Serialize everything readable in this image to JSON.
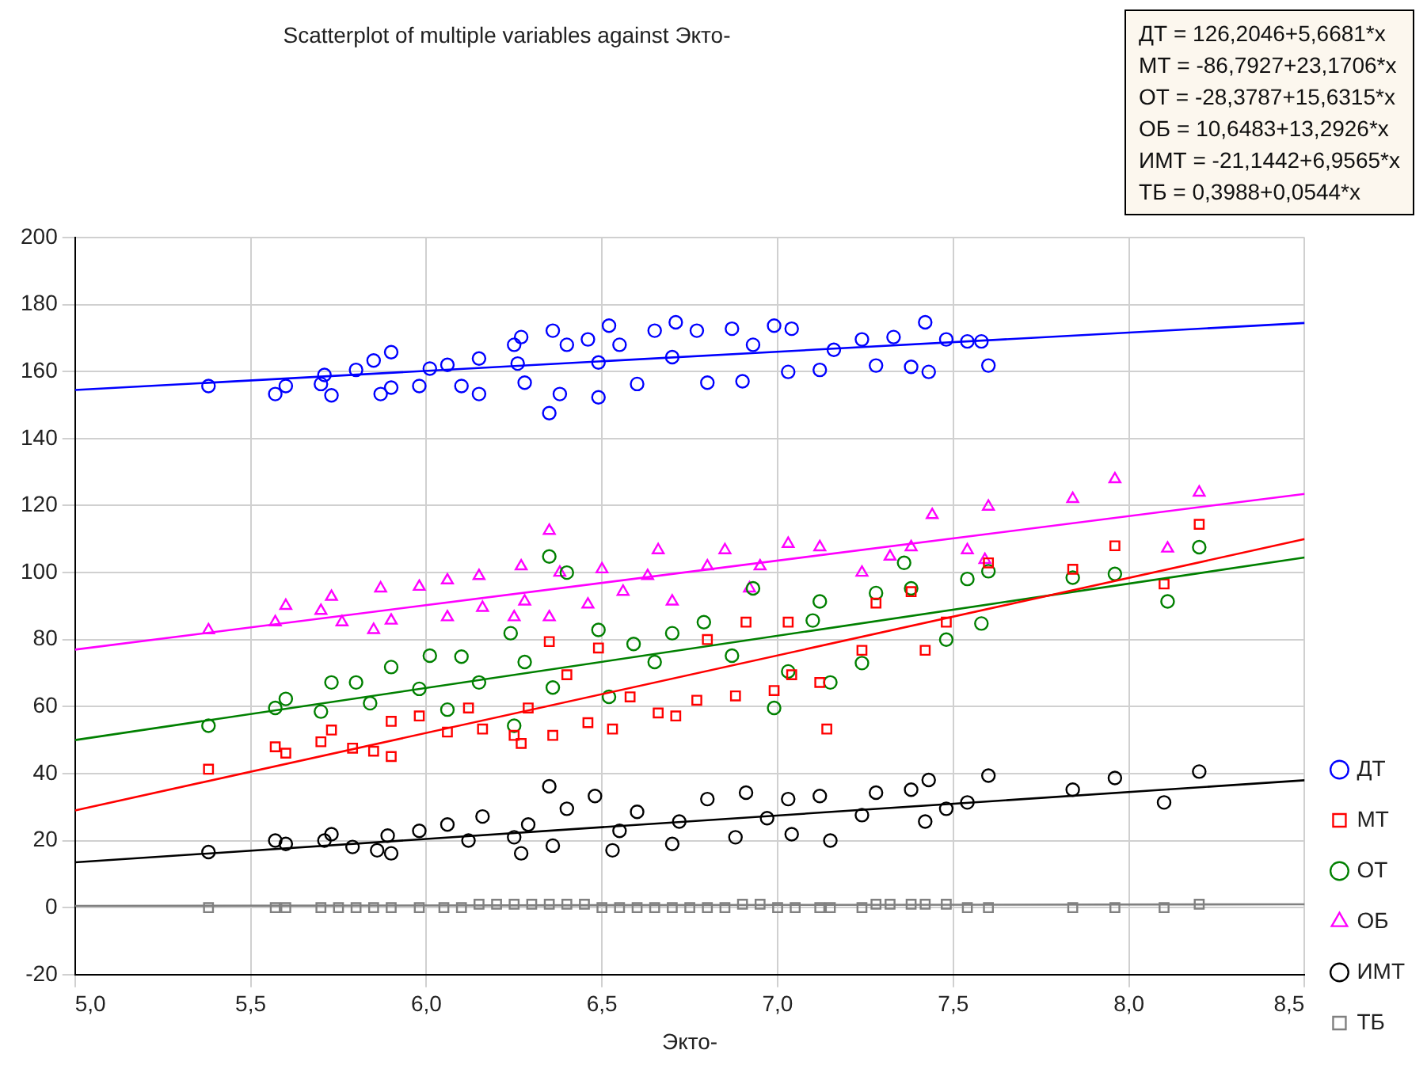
{
  "chart_data": {
    "type": "scatter",
    "title": "Scatterplot of multiple variables against Экто-",
    "xlabel": "Экто-",
    "xlim": [
      5,
      8.5
    ],
    "xticks": [
      {
        "value": 5,
        "label": "5,0"
      },
      {
        "value": 5.5,
        "label": "5,5"
      },
      {
        "value": 6,
        "label": "6,0"
      },
      {
        "value": 6.5,
        "label": "6,5"
      },
      {
        "value": 7,
        "label": "7,0"
      },
      {
        "value": 7.5,
        "label": "7,5"
      },
      {
        "value": 8,
        "label": "8,0"
      },
      {
        "value": 8.5,
        "label": "8,5"
      }
    ],
    "ylim": [
      -20,
      200
    ],
    "yticks": [
      -20,
      0,
      20,
      40,
      60,
      80,
      100,
      120,
      140,
      160,
      180,
      200
    ],
    "grid": true,
    "legend": "bottom right",
    "annotations": [
      "ДТ = 126,2046+5,6681*x",
      "МТ = -86,7927+23,1706*x",
      "ОТ = -28,3787+15,6315*x",
      "ОБ = 10,6483+13,2926*x",
      "ИМТ = -21,1442+6,9565*x",
      "ТБ = 0,3988+0,0544*x"
    ],
    "series": [
      {
        "name": "ДТ",
        "color": "#0000ff",
        "marker": "circle",
        "x": [
          5.38,
          5.57,
          5.6,
          5.71,
          5.73,
          5.7,
          5.8,
          5.85,
          5.87,
          5.9,
          5.9,
          5.98,
          6.01,
          6.06,
          6.1,
          6.15,
          6.15,
          6.25,
          6.27,
          6.26,
          6.28,
          6.35,
          6.36,
          6.38,
          6.4,
          6.46,
          6.49,
          6.49,
          6.52,
          6.55,
          6.6,
          6.65,
          6.71,
          6.7,
          6.77,
          6.8,
          6.87,
          6.9,
          6.93,
          6.99,
          7.03,
          7.04,
          7.12,
          7.16,
          7.24,
          7.28,
          7.33,
          7.38,
          7.42,
          7.43,
          7.48,
          7.54,
          7.58,
          7.6
        ],
        "values": [
          155.7,
          153.3,
          155.7,
          159,
          152.9,
          156.3,
          160.5,
          163.3,
          153.3,
          165.8,
          155.2,
          155.7,
          160.9,
          162,
          155.7,
          153.3,
          163.9,
          168,
          170.3,
          162.4,
          156.7,
          147.6,
          172.2,
          153.3,
          168,
          169.6,
          162.7,
          152.3,
          173.7,
          168,
          156.3,
          172.2,
          174.7,
          164.3,
          172.2,
          156.7,
          172.8,
          157.1,
          168,
          173.7,
          159.9,
          172.8,
          160.5,
          166.5,
          169.6,
          161.8,
          170.3,
          161.4,
          174.7,
          159.9,
          169.6,
          169,
          169,
          161.8
        ]
      },
      {
        "name": "МТ",
        "color": "#ff0000",
        "marker": "square",
        "x": [
          5.38,
          5.57,
          5.6,
          5.7,
          5.73,
          5.79,
          5.85,
          5.9,
          5.9,
          5.98,
          6.06,
          6.12,
          6.16,
          6.25,
          6.27,
          6.29,
          6.35,
          6.36,
          6.4,
          6.46,
          6.49,
          6.53,
          6.58,
          6.66,
          6.71,
          6.77,
          6.8,
          6.88,
          6.91,
          6.99,
          7.03,
          7.04,
          7.12,
          7.14,
          7.24,
          7.28,
          7.38,
          7.42,
          7.48,
          7.6,
          7.84,
          7.96,
          8.1,
          8.2
        ],
        "values": [
          41.3,
          48,
          46.1,
          49.5,
          53,
          47.6,
          46.7,
          55.6,
          45.1,
          57.2,
          52.4,
          59.6,
          53.3,
          51.4,
          49,
          59.6,
          79.4,
          51.4,
          69.5,
          55.2,
          77.5,
          53.3,
          62.9,
          58.1,
          57.2,
          61.9,
          80,
          63.2,
          85.2,
          64.8,
          85.2,
          69.5,
          67.2,
          53.3,
          76.8,
          90.9,
          94.3,
          76.8,
          85.2,
          102.9,
          101,
          108,
          96.6,
          114.4
        ]
      },
      {
        "name": "ОТ",
        "color": "#008000",
        "marker": "circle",
        "x": [
          5.38,
          5.57,
          5.6,
          5.7,
          5.73,
          5.8,
          5.84,
          5.9,
          5.98,
          6.01,
          6.06,
          6.1,
          6.15,
          6.24,
          6.25,
          6.28,
          6.35,
          6.36,
          6.4,
          6.49,
          6.52,
          6.59,
          6.65,
          6.7,
          6.79,
          6.87,
          6.93,
          6.99,
          7.03,
          7.1,
          7.12,
          7.15,
          7.24,
          7.28,
          7.36,
          7.38,
          7.48,
          7.54,
          7.6,
          7.58,
          7.84,
          7.96,
          8.11,
          8.2
        ],
        "values": [
          54.3,
          59.6,
          62.3,
          58.5,
          67.2,
          67.2,
          61,
          71.8,
          65.3,
          75.2,
          59.1,
          74.9,
          67.2,
          81.9,
          54.3,
          73.3,
          104.8,
          65.7,
          100,
          82.9,
          62.9,
          78.7,
          73.3,
          81.9,
          85.2,
          75.2,
          95.3,
          59.6,
          70.5,
          85.7,
          91.4,
          67.2,
          73,
          93.9,
          102.9,
          95.3,
          80,
          98.1,
          100.4,
          84.8,
          98.5,
          99.6,
          91.4,
          107.6
        ]
      },
      {
        "name": "ОБ",
        "color": "#ff00ff",
        "marker": "triangle",
        "x": [
          5.38,
          5.57,
          5.6,
          5.7,
          5.73,
          5.76,
          5.85,
          5.87,
          5.9,
          5.98,
          6.06,
          6.06,
          6.15,
          6.16,
          6.27,
          6.25,
          6.28,
          6.35,
          6.38,
          6.46,
          6.5,
          6.56,
          6.63,
          6.7,
          6.66,
          6.8,
          6.85,
          6.92,
          6.95,
          7.03,
          7.12,
          7.24,
          7.32,
          7.38,
          7.54,
          7.59,
          8.11,
          6.35,
          7.44,
          7.6,
          7.84,
          7.96,
          8.2
        ],
        "values": [
          82.8,
          85.2,
          90.1,
          88.6,
          92.8,
          85.2,
          82.9,
          95.3,
          85.7,
          95.8,
          97.7,
          86.7,
          99,
          89.5,
          101.9,
          86.7,
          91.4,
          86.7,
          100,
          90.5,
          101,
          94.3,
          99,
          91.4,
          106.7,
          101.9,
          106.7,
          95.3,
          101.9,
          108.6,
          107.6,
          100,
          104.8,
          107.6,
          106.7,
          103.8,
          107.2,
          112.5,
          117.2,
          119.7,
          122,
          127.9,
          123.9
        ]
      },
      {
        "name": "ИМТ",
        "color": "#000000",
        "marker": "circle",
        "x": [
          5.38,
          5.57,
          5.6,
          5.71,
          5.73,
          5.79,
          5.86,
          5.89,
          5.9,
          5.98,
          6.06,
          6.12,
          6.16,
          6.25,
          6.27,
          6.29,
          6.35,
          6.36,
          6.4,
          6.48,
          6.53,
          6.55,
          6.6,
          6.7,
          6.72,
          6.8,
          6.88,
          6.91,
          6.97,
          7.03,
          7.04,
          7.12,
          7.15,
          7.24,
          7.28,
          7.38,
          7.42,
          7.43,
          7.48,
          7.54,
          7.6,
          7.84,
          7.96,
          8.1,
          8.2
        ],
        "values": [
          16.6,
          20,
          19,
          20,
          21.9,
          18.1,
          17.1,
          21.5,
          16.2,
          22.9,
          24.8,
          20,
          27.2,
          21,
          16.2,
          24.8,
          36.2,
          18.5,
          29.5,
          33.3,
          17.1,
          22.9,
          28.6,
          19,
          25.7,
          32.4,
          21,
          34.3,
          26.7,
          32.4,
          21.9,
          33.3,
          20,
          27.6,
          34.3,
          35.2,
          25.7,
          38.1,
          29.5,
          31.4,
          39.4,
          35.2,
          38.7,
          31.4,
          40.6
        ]
      },
      {
        "name": "ТБ",
        "color": "#808080",
        "marker": "square",
        "x": [
          5.38,
          5.57,
          5.6,
          5.7,
          5.75,
          5.8,
          5.85,
          5.9,
          5.98,
          6.05,
          6.1,
          6.15,
          6.2,
          6.25,
          6.3,
          6.35,
          6.4,
          6.45,
          6.5,
          6.55,
          6.6,
          6.65,
          6.7,
          6.75,
          6.8,
          6.85,
          6.9,
          6.95,
          7,
          7.05,
          7.12,
          7.15,
          7.24,
          7.28,
          7.32,
          7.38,
          7.42,
          7.48,
          7.54,
          7.6,
          7.84,
          7.96,
          8.1,
          8.2
        ],
        "values": [
          0,
          0,
          0,
          0,
          0,
          0,
          0,
          0,
          0,
          0,
          0,
          1,
          1,
          1,
          1,
          1,
          1,
          1,
          0,
          0,
          0,
          0,
          0,
          0,
          0,
          0,
          1,
          1,
          0,
          0,
          0,
          0,
          0,
          1,
          1,
          1,
          1,
          1,
          0,
          0,
          0,
          0,
          0,
          1
        ]
      },
      {
        "type": "line",
        "color": "#0000ff",
        "marker": "none",
        "x": [
          5,
          8.5
        ],
        "values": [
          154.5,
          174.5
        ]
      },
      {
        "type": "line",
        "color": "#ff0000",
        "marker": "none",
        "x": [
          5,
          8.5
        ],
        "values": [
          29,
          110
        ]
      },
      {
        "type": "line",
        "color": "#008000",
        "marker": "none",
        "x": [
          5,
          8.5
        ],
        "values": [
          50,
          104.5
        ]
      },
      {
        "type": "line",
        "color": "#ff00ff",
        "marker": "none",
        "x": [
          5,
          8.5
        ],
        "values": [
          77,
          123.5
        ]
      },
      {
        "type": "line",
        "color": "#000000",
        "marker": "none",
        "x": [
          5,
          8.5
        ],
        "values": [
          13.5,
          38
        ]
      },
      {
        "type": "line",
        "color": "#808080",
        "marker": "none",
        "x": [
          5,
          8.5
        ],
        "values": [
          0.5,
          1
        ]
      }
    ]
  }
}
